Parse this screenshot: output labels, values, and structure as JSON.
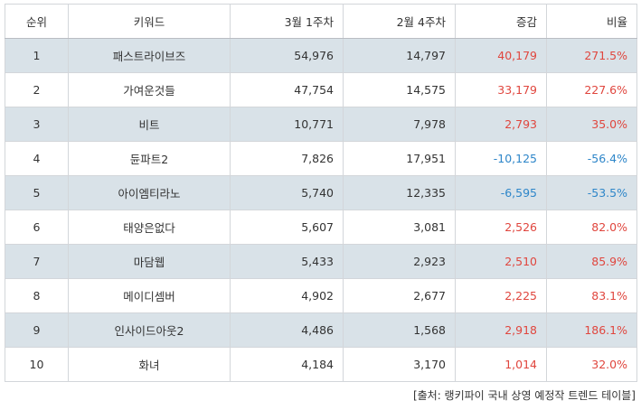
{
  "headers": [
    "순위",
    "키워드",
    "3월 1주차",
    "2월 4주차",
    "증감",
    "비율"
  ],
  "rows": [
    {
      "rank": "1",
      "keyword": "패스트라이브즈",
      "w1": "54,976",
      "w0": "14,797",
      "diff": "40,179",
      "ratio": "271.5%",
      "sign": "pos"
    },
    {
      "rank": "2",
      "keyword": "가여운것들",
      "w1": "47,754",
      "w0": "14,575",
      "diff": "33,179",
      "ratio": "227.6%",
      "sign": "pos"
    },
    {
      "rank": "3",
      "keyword": "비트",
      "w1": "10,771",
      "w0": "7,978",
      "diff": "2,793",
      "ratio": "35.0%",
      "sign": "pos"
    },
    {
      "rank": "4",
      "keyword": "듄파트2",
      "w1": "7,826",
      "w0": "17,951",
      "diff": "-10,125",
      "ratio": "-56.4%",
      "sign": "neg"
    },
    {
      "rank": "5",
      "keyword": "아이엠티라노",
      "w1": "5,740",
      "w0": "12,335",
      "diff": "-6,595",
      "ratio": "-53.5%",
      "sign": "neg"
    },
    {
      "rank": "6",
      "keyword": "태양은없다",
      "w1": "5,607",
      "w0": "3,081",
      "diff": "2,526",
      "ratio": "82.0%",
      "sign": "pos"
    },
    {
      "rank": "7",
      "keyword": "마담웹",
      "w1": "5,433",
      "w0": "2,923",
      "diff": "2,510",
      "ratio": "85.9%",
      "sign": "pos"
    },
    {
      "rank": "8",
      "keyword": "메이디셈버",
      "w1": "4,902",
      "w0": "2,677",
      "diff": "2,225",
      "ratio": "83.1%",
      "sign": "pos"
    },
    {
      "rank": "9",
      "keyword": "인사이드아웃2",
      "w1": "4,486",
      "w0": "1,568",
      "diff": "2,918",
      "ratio": "186.1%",
      "sign": "pos"
    },
    {
      "rank": "10",
      "keyword": "화녀",
      "w1": "4,184",
      "w0": "3,170",
      "diff": "1,014",
      "ratio": "32.0%",
      "sign": "pos"
    }
  ],
  "source": "[출처: 랭키파이 국내 상영 예정작 트렌드 테이블]",
  "colors": {
    "positive": "#e0463e",
    "negative": "#2e86c9",
    "stripe": "#d9e2e8"
  }
}
